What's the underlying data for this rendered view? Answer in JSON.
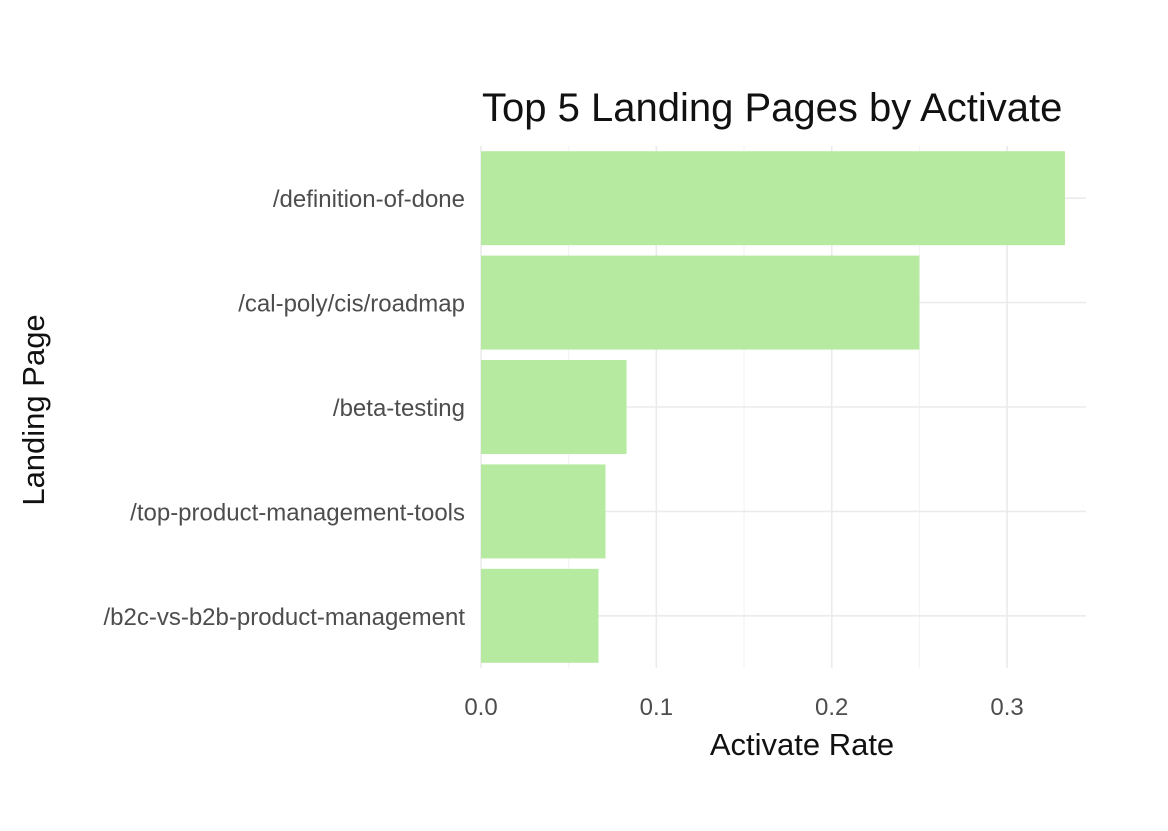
{
  "chart_data": {
    "type": "bar",
    "orientation": "horizontal",
    "title": "Top 5 Landing Pages by Activate",
    "xlabel": "Activate Rate",
    "ylabel": "Landing Page",
    "categories": [
      "/definition-of-done",
      "/cal-poly/cis/roadmap",
      "/beta-testing",
      "/top-product-management-tools",
      "/b2c-vs-b2b-product-management"
    ],
    "values": [
      0.333,
      0.25,
      0.083,
      0.071,
      0.067
    ],
    "xlim": [
      0,
      0.345
    ],
    "xticks": [
      0.0,
      0.1,
      0.2,
      0.3
    ],
    "xtick_labels": [
      "0.0",
      "0.1",
      "0.2",
      "0.3"
    ],
    "grid": true,
    "legend": "none",
    "bar_color": "#b5eaa0",
    "grid_color": "#ebebeb"
  }
}
